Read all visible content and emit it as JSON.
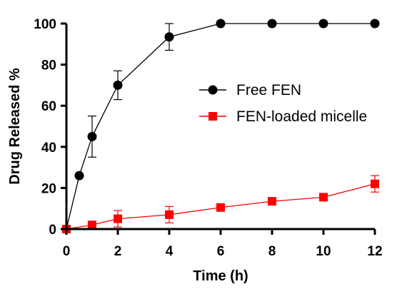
{
  "chart_data": {
    "type": "line",
    "title": "",
    "xlabel": "Time (h)",
    "ylabel": "Drug Released %",
    "xlim": [
      0,
      12
    ],
    "ylim": [
      0,
      100
    ],
    "xticks": [
      0,
      2,
      4,
      6,
      8,
      10,
      12
    ],
    "yticks": [
      0,
      20,
      40,
      60,
      80,
      100
    ],
    "grid": false,
    "legend_position": "center-right",
    "series": [
      {
        "name": "Free FEN",
        "color": "#000000",
        "marker": "circle",
        "x": [
          0,
          0.5,
          1,
          2,
          4,
          6,
          8,
          10,
          12
        ],
        "y": [
          0,
          26,
          45,
          70,
          93.5,
          100,
          100,
          100,
          100
        ],
        "error": [
          0,
          0,
          10,
          7,
          6.5,
          0,
          0,
          0,
          0
        ]
      },
      {
        "name": "FEN-loaded micelle",
        "color": "#ff0000",
        "marker": "square",
        "x": [
          0,
          1,
          2,
          4,
          6,
          8,
          10,
          12
        ],
        "y": [
          0,
          2,
          5,
          7,
          10.5,
          13.5,
          15.5,
          22
        ],
        "error": [
          0,
          1,
          4,
          4,
          0,
          0,
          0,
          4
        ]
      }
    ]
  }
}
